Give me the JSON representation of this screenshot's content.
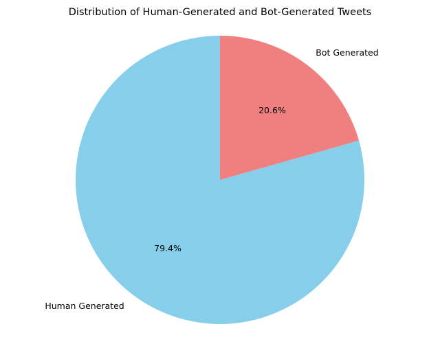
{
  "chart_data": {
    "type": "pie",
    "title": "Distribution of Human-Generated and Bot-Generated Tweets",
    "slices": [
      {
        "label": "Human Generated",
        "percent": 79.4,
        "percent_label": "79.4%",
        "color": "#87CEEB"
      },
      {
        "label": "Bot Generated",
        "percent": 20.6,
        "percent_label": "20.6%",
        "color": "#F08080"
      }
    ],
    "start_angle_deg": 90,
    "direction": "counterclockwise",
    "legend": "none"
  }
}
